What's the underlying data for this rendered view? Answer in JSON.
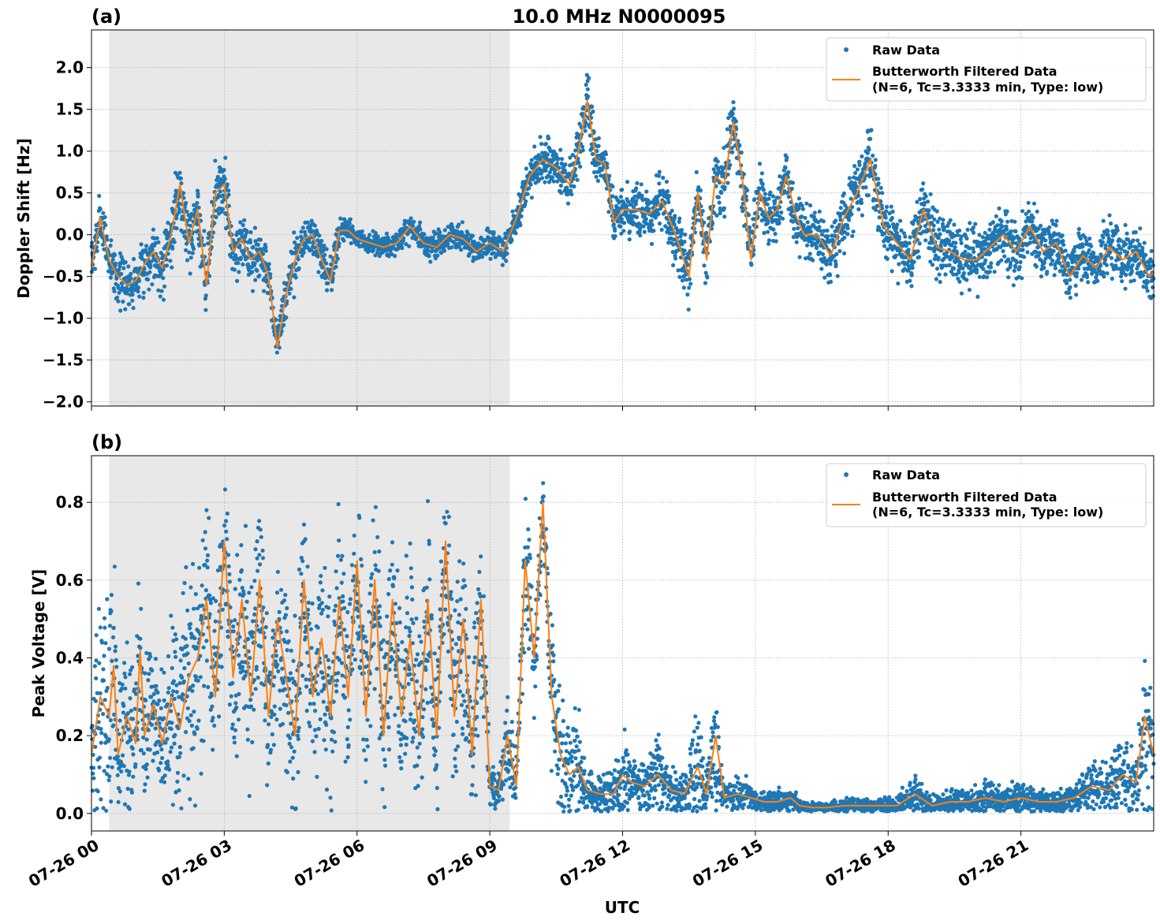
{
  "figure": {
    "title": "10.0 MHz N0000095",
    "xlabel": "UTC",
    "x_tick_labels": [
      "07-26 00",
      "07-26 03",
      "07-26 06",
      "07-26 09",
      "07-26 12",
      "07-26 15",
      "07-26 18",
      "07-26 21"
    ]
  },
  "colors": {
    "raw": "#1f77b4",
    "filtered": "#ff7f0e",
    "night_shade": "#e8e8e8",
    "grid": "#b0b0b0"
  },
  "chart_data": [
    {
      "type": "scatter",
      "panel_label": "(a)",
      "ylabel": "Doppler Shift [Hz]",
      "x_unit": "hours UTC on 07-26",
      "xlim": [
        0,
        24
      ],
      "ylim": [
        -2.05,
        2.45
      ],
      "y_ticks": [
        -2.0,
        -1.5,
        -1.0,
        -0.5,
        0.0,
        0.5,
        1.0,
        1.5,
        2.0
      ],
      "y_tick_labels": [
        "−2.0",
        "−1.5",
        "−1.0",
        "−0.5",
        "0.0",
        "0.5",
        "1.0",
        "1.5",
        "2.0"
      ],
      "shaded_interval": [
        0.4,
        9.45
      ],
      "grid": true,
      "legend_position": "top-right",
      "legend": {
        "raw": "Raw Data",
        "filtered_line1": "Butterworth Filtered Data",
        "filtered_line2": "(N=6, Tc=3.3333 min, Type: low)"
      },
      "series": [
        {
          "name": "Butterworth Filtered Data",
          "x": [
            0,
            0.2,
            0.4,
            0.6,
            0.8,
            1.0,
            1.2,
            1.4,
            1.6,
            1.8,
            2.0,
            2.2,
            2.4,
            2.6,
            2.8,
            3.0,
            3.2,
            3.4,
            3.6,
            3.8,
            4.0,
            4.2,
            4.4,
            4.6,
            4.8,
            5.0,
            5.2,
            5.4,
            5.6,
            5.8,
            6.0,
            6.3,
            6.6,
            6.9,
            7.2,
            7.5,
            7.8,
            8.1,
            8.4,
            8.7,
            9.0,
            9.3,
            9.6,
            9.9,
            10.2,
            10.5,
            10.8,
            11.0,
            11.2,
            11.4,
            11.6,
            11.8,
            12.0,
            12.3,
            12.6,
            12.9,
            13.2,
            13.5,
            13.7,
            13.9,
            14.1,
            14.3,
            14.5,
            14.7,
            14.9,
            15.1,
            15.3,
            15.5,
            15.7,
            15.9,
            16.1,
            16.4,
            16.7,
            17.0,
            17.3,
            17.6,
            17.9,
            18.2,
            18.5,
            18.8,
            19.1,
            19.4,
            19.7,
            20.0,
            20.3,
            20.6,
            20.9,
            21.2,
            21.5,
            21.8,
            22.1,
            22.4,
            22.7,
            23.0,
            23.3,
            23.6,
            23.9,
            24.0
          ],
          "y": [
            -0.4,
            0.2,
            -0.3,
            -0.5,
            -0.6,
            -0.55,
            -0.35,
            -0.2,
            -0.4,
            0.0,
            0.6,
            -0.1,
            0.3,
            -0.6,
            0.5,
            0.6,
            -0.2,
            -0.05,
            -0.3,
            -0.2,
            -0.5,
            -1.35,
            -0.7,
            -0.3,
            -0.05,
            0.0,
            -0.3,
            -0.55,
            0.05,
            0.05,
            -0.05,
            -0.1,
            -0.15,
            -0.1,
            0.1,
            -0.1,
            -0.15,
            0.0,
            -0.05,
            -0.2,
            -0.1,
            -0.2,
            0.2,
            0.7,
            0.9,
            0.8,
            0.6,
            1.0,
            1.6,
            0.9,
            0.85,
            0.15,
            0.3,
            0.3,
            0.25,
            0.4,
            0.0,
            -0.5,
            0.5,
            -0.3,
            0.7,
            0.6,
            1.35,
            0.7,
            -0.3,
            0.5,
            0.2,
            0.3,
            0.7,
            0.25,
            0.0,
            0.0,
            -0.25,
            0.2,
            0.5,
            0.9,
            0.1,
            -0.1,
            -0.3,
            0.3,
            -0.15,
            -0.2,
            -0.3,
            -0.3,
            -0.15,
            0.0,
            -0.2,
            0.1,
            -0.2,
            -0.1,
            -0.5,
            -0.25,
            -0.4,
            -0.15,
            -0.3,
            -0.2,
            -0.5,
            -0.45
          ]
        },
        {
          "name": "Raw Data",
          "spread_around_filtered": [
            0.35,
            0.4,
            0.35,
            0.45,
            0.3,
            0.35,
            0.4,
            0.45,
            0.5,
            0.45,
            0.5,
            0.45,
            0.5,
            0.5,
            0.55,
            0.45,
            0.4,
            0.4,
            0.4,
            0.35,
            0.35,
            0.35,
            0.4,
            0.45,
            0.35,
            0.3,
            0.3,
            0.35,
            0.25,
            0.2,
            0.15,
            0.15,
            0.15,
            0.2,
            0.2,
            0.2,
            0.2,
            0.2,
            0.2,
            0.2,
            0.2,
            0.2,
            0.25,
            0.3,
            0.35,
            0.35,
            0.35,
            0.35,
            0.45,
            0.35,
            0.35,
            0.35,
            0.4,
            0.45,
            0.45,
            0.45,
            0.45,
            0.5,
            0.45,
            0.45,
            0.5,
            0.5,
            0.45,
            0.45,
            0.45,
            0.45,
            0.45,
            0.45,
            0.45,
            0.45,
            0.45,
            0.45,
            0.45,
            0.45,
            0.45,
            0.45,
            0.45,
            0.45,
            0.45,
            0.45,
            0.45,
            0.45,
            0.45,
            0.45,
            0.45,
            0.45,
            0.45,
            0.45,
            0.45,
            0.45,
            0.45,
            0.45,
            0.45,
            0.45,
            0.45,
            0.45,
            0.45,
            0.45
          ]
        }
      ]
    },
    {
      "type": "scatter",
      "panel_label": "(b)",
      "ylabel": "Peak Voltage [V]",
      "x_unit": "hours UTC on 07-26",
      "xlim": [
        0,
        24
      ],
      "ylim": [
        -0.045,
        0.92
      ],
      "y_ticks": [
        0.0,
        0.2,
        0.4,
        0.6,
        0.8
      ],
      "y_tick_labels": [
        "0.0",
        "0.2",
        "0.4",
        "0.6",
        "0.8"
      ],
      "shaded_interval": [
        0.4,
        9.45
      ],
      "grid": true,
      "legend_position": "top-right",
      "legend": {
        "raw": "Raw Data",
        "filtered_line1": "Butterworth Filtered Data",
        "filtered_line2": "(N=6, Tc=3.3333 min, Type: low)"
      },
      "series": [
        {
          "name": "Butterworth Filtered Data",
          "x": [
            0,
            0.2,
            0.4,
            0.5,
            0.6,
            0.8,
            1.0,
            1.1,
            1.2,
            1.4,
            1.6,
            1.8,
            2.0,
            2.2,
            2.4,
            2.6,
            2.8,
            3.0,
            3.2,
            3.4,
            3.6,
            3.8,
            4.0,
            4.2,
            4.4,
            4.6,
            4.8,
            5.0,
            5.2,
            5.4,
            5.6,
            5.8,
            6.0,
            6.2,
            6.4,
            6.6,
            6.8,
            7.0,
            7.2,
            7.4,
            7.6,
            7.8,
            8.0,
            8.2,
            8.4,
            8.6,
            8.8,
            9.0,
            9.2,
            9.4,
            9.6,
            9.8,
            10.0,
            10.2,
            10.4,
            10.6,
            10.8,
            11.0,
            11.2,
            11.5,
            11.8,
            12.0,
            12.2,
            12.5,
            12.8,
            13.1,
            13.4,
            13.7,
            13.9,
            14.1,
            14.3,
            14.6,
            14.9,
            15.2,
            15.5,
            15.8,
            16.0,
            16.3,
            16.6,
            17.0,
            17.4,
            17.8,
            18.2,
            18.6,
            19.0,
            19.4,
            19.8,
            20.2,
            20.6,
            21.0,
            21.4,
            21.8,
            22.2,
            22.6,
            23.0,
            23.3,
            23.6,
            23.8,
            24.0
          ],
          "y": [
            0.15,
            0.3,
            0.25,
            0.38,
            0.15,
            0.25,
            0.18,
            0.42,
            0.2,
            0.28,
            0.18,
            0.3,
            0.22,
            0.35,
            0.4,
            0.55,
            0.3,
            0.7,
            0.35,
            0.55,
            0.3,
            0.6,
            0.25,
            0.5,
            0.35,
            0.2,
            0.6,
            0.3,
            0.45,
            0.25,
            0.55,
            0.3,
            0.65,
            0.25,
            0.6,
            0.2,
            0.55,
            0.25,
            0.45,
            0.2,
            0.55,
            0.2,
            0.7,
            0.25,
            0.5,
            0.15,
            0.55,
            0.07,
            0.06,
            0.2,
            0.07,
            0.65,
            0.4,
            0.8,
            0.3,
            0.15,
            0.1,
            0.12,
            0.06,
            0.05,
            0.05,
            0.1,
            0.08,
            0.07,
            0.1,
            0.06,
            0.05,
            0.12,
            0.05,
            0.2,
            0.04,
            0.05,
            0.04,
            0.03,
            0.03,
            0.04,
            0.02,
            0.015,
            0.015,
            0.02,
            0.02,
            0.02,
            0.02,
            0.05,
            0.02,
            0.03,
            0.03,
            0.04,
            0.03,
            0.04,
            0.03,
            0.03,
            0.04,
            0.07,
            0.06,
            0.1,
            0.08,
            0.25,
            0.15
          ]
        },
        {
          "name": "Raw Data",
          "spread_around_filtered": [
            0.25,
            0.35,
            0.35,
            0.4,
            0.2,
            0.25,
            0.25,
            0.3,
            0.2,
            0.25,
            0.2,
            0.3,
            0.3,
            0.35,
            0.4,
            0.35,
            0.35,
            0.2,
            0.35,
            0.35,
            0.3,
            0.3,
            0.3,
            0.3,
            0.35,
            0.3,
            0.3,
            0.3,
            0.35,
            0.3,
            0.3,
            0.3,
            0.25,
            0.3,
            0.3,
            0.3,
            0.3,
            0.3,
            0.3,
            0.3,
            0.3,
            0.3,
            0.2,
            0.3,
            0.35,
            0.2,
            0.35,
            0.08,
            0.08,
            0.15,
            0.1,
            0.25,
            0.3,
            0.1,
            0.25,
            0.2,
            0.15,
            0.15,
            0.08,
            0.06,
            0.08,
            0.15,
            0.1,
            0.1,
            0.1,
            0.08,
            0.07,
            0.2,
            0.06,
            0.25,
            0.05,
            0.06,
            0.05,
            0.04,
            0.04,
            0.05,
            0.02,
            0.015,
            0.015,
            0.02,
            0.025,
            0.02,
            0.03,
            0.06,
            0.03,
            0.04,
            0.04,
            0.06,
            0.04,
            0.05,
            0.04,
            0.04,
            0.05,
            0.08,
            0.08,
            0.12,
            0.1,
            0.3,
            0.25
          ]
        }
      ]
    }
  ]
}
